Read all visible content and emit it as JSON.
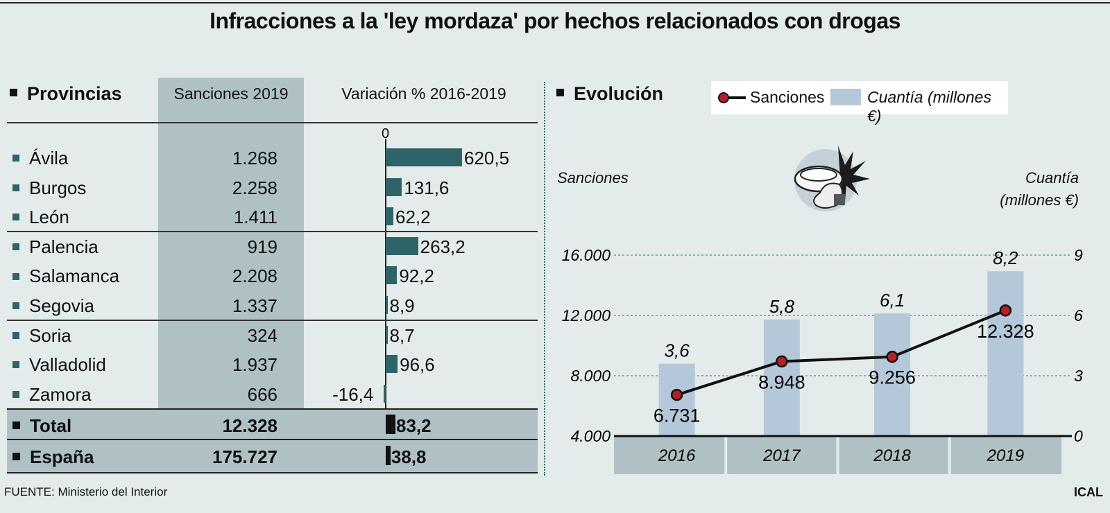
{
  "title": "Infracciones a la 'ley mordaza' por hechos relacionados con drogas",
  "left_panel": {
    "header": "Provincias",
    "col_sanciones": "Sanciones 2019",
    "col_variacion": "Variación % 2016-2019",
    "zero_label": "0",
    "rows": [
      {
        "name": "Ávila",
        "sanciones": "1.268",
        "variacion_label": "620,5",
        "variacion": 620.5
      },
      {
        "name": "Burgos",
        "sanciones": "2.258",
        "variacion_label": "131,6",
        "variacion": 131.6
      },
      {
        "name": "León",
        "sanciones": "1.411",
        "variacion_label": "62,2",
        "variacion": 62.2
      },
      {
        "name": "Palencia",
        "sanciones": "919",
        "variacion_label": "263,2",
        "variacion": 263.2
      },
      {
        "name": "Salamanca",
        "sanciones": "2.208",
        "variacion_label": "92,2",
        "variacion": 92.2
      },
      {
        "name": "Segovia",
        "sanciones": "1.337",
        "variacion_label": "8,9",
        "variacion": 8.9
      },
      {
        "name": "Soria",
        "sanciones": "324",
        "variacion_label": "8,7",
        "variacion": 8.7
      },
      {
        "name": "Valladolid",
        "sanciones": "1.937",
        "variacion_label": "96,6",
        "variacion": 96.6
      },
      {
        "name": "Zamora",
        "sanciones": "666",
        "variacion_label": "-16,4",
        "variacion": -16.4
      }
    ],
    "total": {
      "name": "Total",
      "sanciones": "12.328",
      "variacion_label": "83,2",
      "variacion": 83.2
    },
    "espana": {
      "name": "España",
      "sanciones": "175.727",
      "variacion_label": "38,8",
      "variacion": 38.8
    }
  },
  "right_panel": {
    "header": "Evolución",
    "legend_sanciones": "Sanciones",
    "legend_cuantia": "Cuantía (millones €)",
    "left_axis_title": "Sanciones",
    "right_axis_title_1": "Cuantía",
    "right_axis_title_2": "(millones €)"
  },
  "chart_data": {
    "type": "bar+line",
    "categories": [
      "2016",
      "2017",
      "2018",
      "2019"
    ],
    "series": [
      {
        "name": "Sanciones",
        "type": "line",
        "axis": "left",
        "values": [
          6731,
          8948,
          9256,
          12328
        ],
        "labels": [
          "6.731",
          "8.948",
          "9.256",
          "12.328"
        ]
      },
      {
        "name": "Cuantía (millones €)",
        "type": "bar",
        "axis": "right",
        "values": [
          3.6,
          5.8,
          6.1,
          8.2
        ],
        "labels": [
          "3,6",
          "5,8",
          "6,1",
          "8,2"
        ]
      }
    ],
    "left_ticks": [
      "4.000",
      "8.000",
      "12.000",
      "16.000"
    ],
    "left_tick_values": [
      4000,
      8000,
      12000,
      16000
    ],
    "right_ticks": [
      "0",
      "3",
      "6",
      "9"
    ],
    "right_tick_values": [
      0,
      3,
      6,
      9
    ],
    "ylim_left": [
      4000,
      16000
    ],
    "ylim_right": [
      0,
      9
    ],
    "colors": {
      "bar": "#b5c8d9",
      "line": "#111111",
      "marker": "#b51f2a",
      "hbar": "#2e6468"
    }
  },
  "footer": {
    "source": "FUENTE: Ministerio del Interior",
    "brand": "ICAL"
  }
}
